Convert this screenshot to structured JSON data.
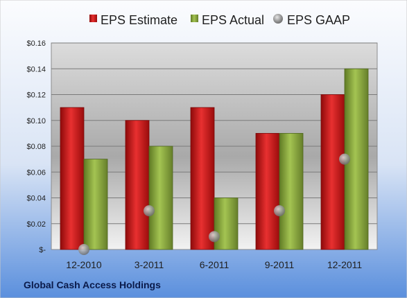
{
  "company": "Global Cash Access Holdings",
  "colors": {
    "estimate": "#d01a1a",
    "actual": "#8aac3c",
    "gaap": "#9a9a9a",
    "background_top": "#fafbfd",
    "background_bottom": "#5b90de"
  },
  "chart_data": {
    "type": "bar",
    "categories": [
      "12-2010",
      "3-2011",
      "6-2011",
      "9-2011",
      "12-2011"
    ],
    "series": [
      {
        "name": "EPS Estimate",
        "kind": "bar",
        "values": [
          0.11,
          0.1,
          0.11,
          0.09,
          0.12
        ]
      },
      {
        "name": "EPS Actual",
        "kind": "bar",
        "values": [
          0.07,
          0.08,
          0.04,
          0.09,
          0.14
        ]
      },
      {
        "name": "EPS GAAP",
        "kind": "marker",
        "values": [
          0.0,
          0.03,
          0.01,
          0.03,
          0.07
        ]
      }
    ],
    "ylim": [
      0,
      0.16
    ],
    "yticks": [
      0,
      0.02,
      0.04,
      0.06,
      0.08,
      0.1,
      0.12,
      0.14,
      0.16
    ],
    "ytick_labels": [
      "$-",
      "$0.02",
      "$0.04",
      "$0.06",
      "$0.08",
      "$0.10",
      "$0.12",
      "$0.14",
      "$0.16"
    ],
    "grid": true,
    "legend": "top"
  }
}
